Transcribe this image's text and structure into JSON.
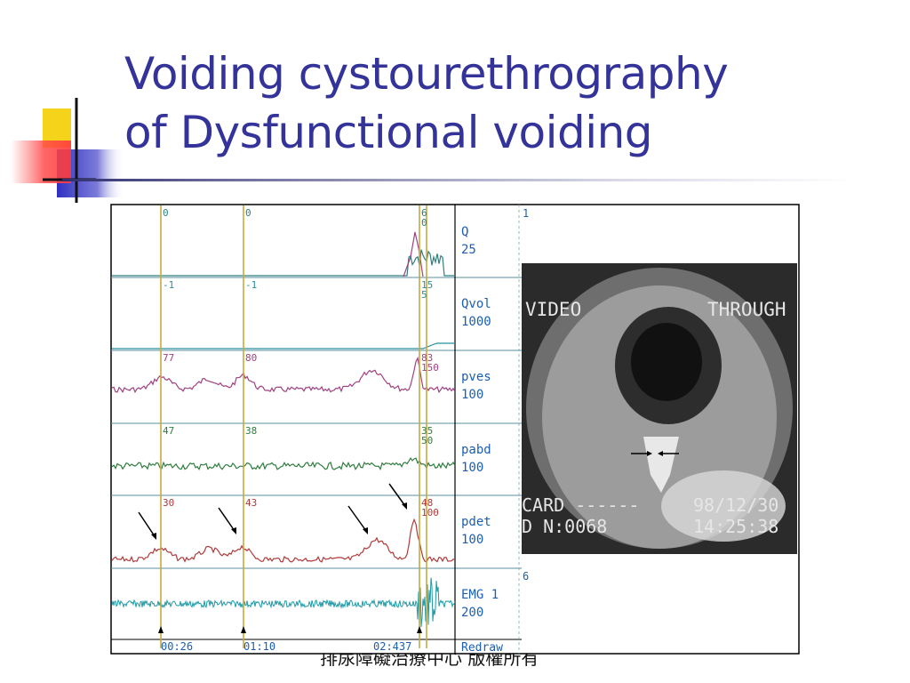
{
  "slide": {
    "title_line1": "Voiding cystourethrography",
    "title_line2": "of Dysfunctional voiding",
    "title_color": "#333399",
    "footer": "排尿障礙治療中心 版權所有"
  },
  "chart_data": {
    "type": "line",
    "title": "",
    "xlabel": "",
    "ylabel": "",
    "x_marker_labels": [
      "00:26",
      "01:10",
      "02:437"
    ],
    "event_markers": [
      {
        "channel_value_labels": [
          "0",
          "-1",
          "77",
          "47",
          "30"
        ]
      },
      {
        "channel_value_labels": [
          "0",
          "-1",
          "80",
          "38",
          "43"
        ]
      },
      {
        "channel_value_labels": [
          "6\n0",
          "15\n5",
          "83\n150",
          "35\n50",
          "48\n100"
        ]
      }
    ],
    "channels": [
      {
        "name": "Q",
        "scale": "25",
        "index": "1",
        "color": "#2f7f7f"
      },
      {
        "name": "Qvol",
        "scale": "1000",
        "index": "2",
        "color": "#2a8fa0"
      },
      {
        "name": "pves",
        "scale": "100",
        "index": "3",
        "color": "#a04080"
      },
      {
        "name": "pabd",
        "scale": "100",
        "index": "4",
        "color": "#2e7d3e"
      },
      {
        "name": "pdet",
        "scale": "100",
        "index": "5",
        "color": "#b03a3a"
      },
      {
        "name": "EMG 1",
        "scale": "200",
        "index": "6",
        "color": "#1f9aa8"
      }
    ],
    "bottom_label": "Redraw",
    "grid": true,
    "legend": "right"
  },
  "inset_image": {
    "top_left": "VIDEO",
    "top_right": "THROUGH",
    "bottom_left_1": "CARD ------",
    "bottom_left_2": "D   N:0068",
    "date": "98/12/30",
    "time": "14:25:38"
  },
  "colors": {
    "marker_line": "#c9a93a",
    "channel_label": "#1a5fb4",
    "frame": "#000000"
  }
}
